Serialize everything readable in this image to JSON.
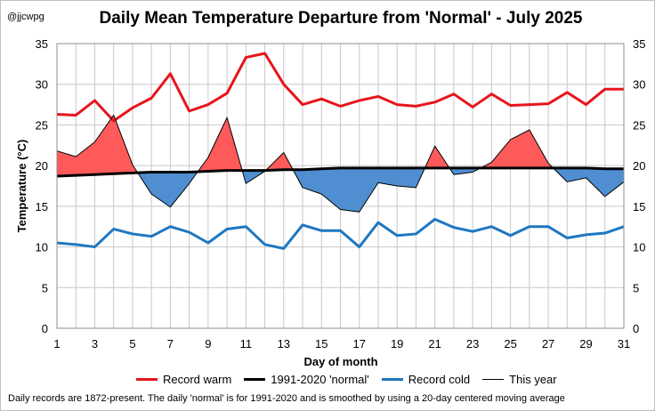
{
  "header": {
    "handle": "@jjcwpg",
    "title": "Daily Mean Temperature Departure from 'Normal' - July 2025"
  },
  "footnote": "Daily records are 1872-present. The  daily 'normal' is for 1991-2020 and is smoothed by using a 20-day centered moving average",
  "colors": {
    "record_warm": "#e8141c",
    "normal": "#000000",
    "record_cold": "#1f77c0",
    "warm_fill": "#ff5a5a",
    "cold_fill": "#4f8fd1",
    "grid": "#c8c8c8"
  },
  "chart_data": {
    "type": "line",
    "title": "Daily Mean Temperature Departure from 'Normal' - July 2025",
    "xlabel": "Day of month",
    "ylabel": "Temperature (°C)",
    "xlim": [
      1,
      31
    ],
    "ylim": [
      0,
      35
    ],
    "yticks": [
      0,
      5,
      10,
      15,
      20,
      25,
      30,
      35
    ],
    "xticks": [
      1,
      3,
      5,
      7,
      9,
      11,
      13,
      15,
      17,
      19,
      21,
      23,
      25,
      27,
      29,
      31
    ],
    "grid": true,
    "legend_position": "bottom",
    "x": [
      1,
      2,
      3,
      4,
      5,
      6,
      7,
      8,
      9,
      10,
      11,
      12,
      13,
      14,
      15,
      16,
      17,
      18,
      19,
      20,
      21,
      22,
      23,
      24,
      25,
      26,
      27,
      28,
      29,
      30,
      31
    ],
    "series": [
      {
        "name": "Record warm",
        "key": "record_warm",
        "values": [
          26.3,
          26.2,
          28.0,
          25.5,
          27.1,
          28.3,
          31.3,
          26.7,
          27.5,
          28.9,
          33.3,
          33.8,
          30.0,
          27.5,
          28.2,
          27.3,
          28.0,
          28.5,
          27.5,
          27.3,
          27.8,
          28.8,
          27.2,
          28.8,
          27.4,
          27.5,
          27.6,
          29.0,
          27.5,
          29.4,
          29.4
        ]
      },
      {
        "name": "1991-2020 'normal'",
        "key": "normal",
        "values": [
          18.7,
          18.8,
          18.9,
          19.0,
          19.1,
          19.2,
          19.2,
          19.2,
          19.3,
          19.4,
          19.4,
          19.4,
          19.5,
          19.5,
          19.6,
          19.7,
          19.7,
          19.7,
          19.7,
          19.7,
          19.7,
          19.7,
          19.7,
          19.7,
          19.7,
          19.7,
          19.7,
          19.7,
          19.7,
          19.6,
          19.6
        ]
      },
      {
        "name": "Record cold",
        "key": "record_cold",
        "values": [
          10.5,
          10.3,
          10.0,
          12.2,
          11.6,
          11.3,
          12.5,
          11.8,
          10.5,
          12.2,
          12.5,
          10.3,
          9.8,
          12.7,
          12.0,
          12.0,
          10.0,
          13.0,
          11.4,
          11.6,
          13.4,
          12.4,
          11.9,
          12.5,
          11.4,
          12.5,
          12.5,
          11.1,
          11.5,
          11.7,
          12.5
        ]
      },
      {
        "name": "This year",
        "key": "this_year",
        "values": [
          21.8,
          21.1,
          22.9,
          26.2,
          20.1,
          16.5,
          14.9,
          17.8,
          21.0,
          25.9,
          17.8,
          19.3,
          21.6,
          17.3,
          16.5,
          14.6,
          14.3,
          17.9,
          17.5,
          17.3,
          22.4,
          18.9,
          19.2,
          20.4,
          23.2,
          24.4,
          20.3,
          18.0,
          18.5,
          16.2,
          18.0
        ]
      }
    ]
  }
}
